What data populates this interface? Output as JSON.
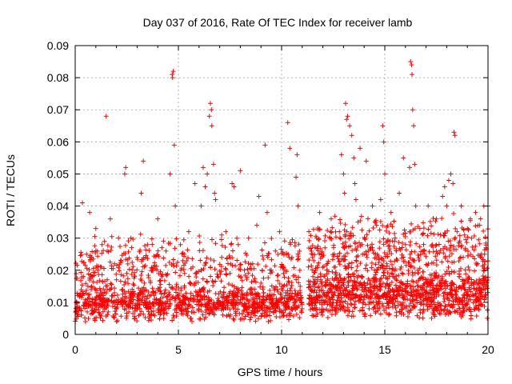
{
  "chart_data": {
    "type": "scatter",
    "title": "Day 037 of 2016, Rate Of TEC Index for receiver lamb",
    "xlabel": "GPS time / hours",
    "ylabel": "ROTI / TECUs",
    "xlim": [
      0,
      20
    ],
    "ylim": [
      0,
      0.09
    ],
    "xticks": [
      0,
      5,
      10,
      15,
      20
    ],
    "xtick_labels": [
      "0",
      "5",
      "10",
      "15",
      "20"
    ],
    "yticks": [
      0,
      0.01,
      0.02,
      0.03,
      0.04,
      0.05,
      0.06,
      0.07,
      0.08,
      0.09
    ],
    "ytick_labels": [
      "0",
      "0.01",
      "0.02",
      "0.03",
      "0.04",
      "0.05",
      "0.06",
      "0.07",
      "0.08",
      "0.09"
    ],
    "grid": true,
    "marker": "+",
    "color": "#ff0000",
    "series": [
      {
        "name": "ROTI",
        "points": [
          [
            0.1,
            0.008
          ],
          [
            0.2,
            0.012
          ],
          [
            0.3,
            0.006
          ],
          [
            0.35,
            0.041
          ],
          [
            0.4,
            0.018
          ],
          [
            0.5,
            0.004
          ],
          [
            0.55,
            0.025
          ],
          [
            0.6,
            0.011
          ],
          [
            0.7,
            0.038
          ],
          [
            0.75,
            0.009
          ],
          [
            0.8,
            0.015
          ],
          [
            0.9,
            0.007
          ],
          [
            1.0,
            0.033
          ],
          [
            1.05,
            0.013
          ],
          [
            1.1,
            0.02
          ],
          [
            1.2,
            0.006
          ],
          [
            1.3,
            0.028
          ],
          [
            1.35,
            0.011
          ],
          [
            1.4,
            0.009
          ],
          [
            1.5,
            0.068
          ],
          [
            1.55,
            0.017
          ],
          [
            1.6,
            0.007
          ],
          [
            1.7,
            0.036
          ],
          [
            1.8,
            0.012
          ],
          [
            1.9,
            0.022
          ],
          [
            2.0,
            0.008
          ],
          [
            2.1,
            0.03
          ],
          [
            2.2,
            0.01
          ],
          [
            2.3,
            0.014
          ],
          [
            2.4,
            0.05
          ],
          [
            2.45,
            0.052
          ],
          [
            2.5,
            0.019
          ],
          [
            2.6,
            0.007
          ],
          [
            2.7,
            0.03
          ],
          [
            2.8,
            0.012
          ],
          [
            2.9,
            0.008
          ],
          [
            3.0,
            0.024
          ],
          [
            3.1,
            0.011
          ],
          [
            3.2,
            0.044
          ],
          [
            3.3,
            0.054
          ],
          [
            3.35,
            0.016
          ],
          [
            3.4,
            0.009
          ],
          [
            3.5,
            0.028
          ],
          [
            3.6,
            0.012
          ],
          [
            3.7,
            0.007
          ],
          [
            3.8,
            0.021
          ],
          [
            3.9,
            0.013
          ],
          [
            4.0,
            0.036
          ],
          [
            4.1,
            0.01
          ],
          [
            4.2,
            0.018
          ],
          [
            4.3,
            0.008
          ],
          [
            4.4,
            0.026
          ],
          [
            4.5,
            0.012
          ],
          [
            4.6,
            0.05
          ],
          [
            4.7,
            0.081
          ],
          [
            4.72,
            0.08
          ],
          [
            4.75,
            0.082
          ],
          [
            4.8,
            0.059
          ],
          [
            4.85,
            0.04
          ],
          [
            4.9,
            0.015
          ],
          [
            5.0,
            0.009
          ],
          [
            5.1,
            0.028
          ],
          [
            5.2,
            0.012
          ],
          [
            5.3,
            0.019
          ],
          [
            5.4,
            0.007
          ],
          [
            5.5,
            0.032
          ],
          [
            5.6,
            0.011
          ],
          [
            5.7,
            0.021
          ],
          [
            5.8,
            0.047
          ],
          [
            5.9,
            0.013
          ],
          [
            6.0,
            0.009
          ],
          [
            6.1,
            0.04
          ],
          [
            6.2,
            0.052
          ],
          [
            6.3,
            0.046
          ],
          [
            6.4,
            0.05
          ],
          [
            6.5,
            0.068
          ],
          [
            6.55,
            0.072
          ],
          [
            6.6,
            0.07
          ],
          [
            6.62,
            0.065
          ],
          [
            6.7,
            0.053
          ],
          [
            6.75,
            0.044
          ],
          [
            6.8,
            0.042
          ],
          [
            6.9,
            0.018
          ],
          [
            7.0,
            0.01
          ],
          [
            7.1,
            0.024
          ],
          [
            7.2,
            0.013
          ],
          [
            7.3,
            0.032
          ],
          [
            7.4,
            0.009
          ],
          [
            7.5,
            0.019
          ],
          [
            7.6,
            0.047
          ],
          [
            7.7,
            0.046
          ],
          [
            7.8,
            0.012
          ],
          [
            7.9,
            0.028
          ],
          [
            8.0,
            0.051
          ],
          [
            8.1,
            0.011
          ],
          [
            8.2,
            0.02
          ],
          [
            8.3,
            0.008
          ],
          [
            8.4,
            0.03
          ],
          [
            8.5,
            0.013
          ],
          [
            8.6,
            0.022
          ],
          [
            8.7,
            0.01
          ],
          [
            8.8,
            0.034
          ],
          [
            8.9,
            0.043
          ],
          [
            9.0,
            0.016
          ],
          [
            9.1,
            0.011
          ],
          [
            9.2,
            0.059
          ],
          [
            9.3,
            0.038
          ],
          [
            9.4,
            0.012
          ],
          [
            9.5,
            0.02
          ],
          [
            9.6,
            0.009
          ],
          [
            9.7,
            0.026
          ],
          [
            9.8,
            0.014
          ],
          [
            9.9,
            0.032
          ],
          [
            10.0,
            0.01
          ],
          [
            10.1,
            0.019
          ],
          [
            10.2,
            0.013
          ],
          [
            10.3,
            0.066
          ],
          [
            10.4,
            0.058
          ],
          [
            10.5,
            0.024
          ],
          [
            10.6,
            0.011
          ],
          [
            10.7,
            0.049
          ],
          [
            10.75,
            0.056
          ],
          [
            10.8,
            0.04
          ],
          [
            10.9,
            0.015
          ],
          [
            11.0,
            0.008
          ],
          [
            11.4,
            0.011
          ],
          [
            11.5,
            0.024
          ],
          [
            11.6,
            0.008
          ],
          [
            11.7,
            0.03
          ],
          [
            11.8,
            0.012
          ],
          [
            11.9,
            0.018
          ],
          [
            12.0,
            0.007
          ],
          [
            12.1,
            0.027
          ],
          [
            12.2,
            0.013
          ],
          [
            12.3,
            0.01
          ],
          [
            12.4,
            0.036
          ],
          [
            12.5,
            0.015
          ],
          [
            12.6,
            0.021
          ],
          [
            12.7,
            0.009
          ],
          [
            12.8,
            0.032
          ],
          [
            12.9,
            0.056
          ],
          [
            13.0,
            0.05
          ],
          [
            13.05,
            0.044
          ],
          [
            13.1,
            0.072
          ],
          [
            13.15,
            0.067
          ],
          [
            13.2,
            0.068
          ],
          [
            13.3,
            0.065
          ],
          [
            13.4,
            0.062
          ],
          [
            13.5,
            0.055
          ],
          [
            13.55,
            0.047
          ],
          [
            13.6,
            0.042
          ],
          [
            13.7,
            0.035
          ],
          [
            13.8,
            0.058
          ],
          [
            13.9,
            0.028
          ],
          [
            14.0,
            0.016
          ],
          [
            14.1,
            0.054
          ],
          [
            14.2,
            0.026
          ],
          [
            14.3,
            0.013
          ],
          [
            14.4,
            0.04
          ],
          [
            14.5,
            0.02
          ],
          [
            14.6,
            0.034
          ],
          [
            14.7,
            0.011
          ],
          [
            14.8,
            0.042
          ],
          [
            14.9,
            0.065
          ],
          [
            14.95,
            0.06
          ],
          [
            15.0,
            0.05
          ],
          [
            15.1,
            0.022
          ],
          [
            15.2,
            0.013
          ],
          [
            15.3,
            0.038
          ],
          [
            15.4,
            0.018
          ],
          [
            15.5,
            0.03
          ],
          [
            15.6,
            0.012
          ],
          [
            15.7,
            0.044
          ],
          [
            15.8,
            0.021
          ],
          [
            15.9,
            0.055
          ],
          [
            16.0,
            0.028
          ],
          [
            16.1,
            0.015
          ],
          [
            16.2,
            0.052
          ],
          [
            16.25,
            0.085
          ],
          [
            16.3,
            0.084
          ],
          [
            16.32,
            0.081
          ],
          [
            16.35,
            0.07
          ],
          [
            16.4,
            0.065
          ],
          [
            16.45,
            0.053
          ],
          [
            16.5,
            0.04
          ],
          [
            16.6,
            0.02
          ],
          [
            16.7,
            0.033
          ],
          [
            16.8,
            0.012
          ],
          [
            16.9,
            0.026
          ],
          [
            17.0,
            0.017
          ],
          [
            17.1,
            0.04
          ],
          [
            17.2,
            0.013
          ],
          [
            17.3,
            0.028
          ],
          [
            17.4,
            0.019
          ],
          [
            17.5,
            0.036
          ],
          [
            17.6,
            0.014
          ],
          [
            17.7,
            0.031
          ],
          [
            17.8,
            0.043
          ],
          [
            17.9,
            0.046
          ],
          [
            18.0,
            0.04
          ],
          [
            18.1,
            0.048
          ],
          [
            18.2,
            0.05
          ],
          [
            18.3,
            0.047
          ],
          [
            18.35,
            0.063
          ],
          [
            18.4,
            0.062
          ],
          [
            18.5,
            0.032
          ],
          [
            18.6,
            0.018
          ],
          [
            18.7,
            0.04
          ],
          [
            18.8,
            0.024
          ],
          [
            18.9,
            0.014
          ],
          [
            19.0,
            0.033
          ],
          [
            19.1,
            0.02
          ],
          [
            19.2,
            0.03
          ],
          [
            19.3,
            0.012
          ],
          [
            19.4,
            0.038
          ],
          [
            19.5,
            0.022
          ],
          [
            19.6,
            0.034
          ],
          [
            19.7,
            0.016
          ],
          [
            19.8,
            0.04
          ],
          [
            19.9,
            0.027
          ],
          [
            20.0,
            0.04
          ]
        ],
        "dense_band": [
          {
            "x0": 0.0,
            "x1": 11.0,
            "y_center": 0.0095,
            "y_spread": 0.0045,
            "n": 900
          },
          {
            "x0": 11.3,
            "x1": 20.0,
            "y_center": 0.012,
            "y_spread": 0.006,
            "n": 900
          },
          {
            "x0": 0.0,
            "x1": 11.0,
            "y_center": 0.02,
            "y_spread": 0.009,
            "n": 450
          },
          {
            "x0": 11.3,
            "x1": 20.0,
            "y_center": 0.024,
            "y_spread": 0.011,
            "n": 550
          }
        ]
      }
    ]
  }
}
